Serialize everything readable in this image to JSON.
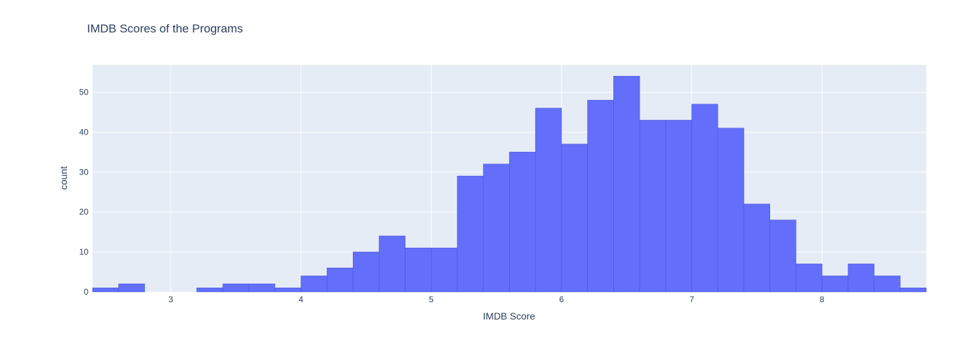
{
  "chart_data": {
    "type": "bar",
    "title": "IMDB Scores of the Programs",
    "xlabel": "IMDB Score",
    "ylabel": "count",
    "bin_width": 0.2,
    "bins": [
      {
        "start": 2.4,
        "count": 1
      },
      {
        "start": 2.6,
        "count": 2
      },
      {
        "start": 2.8,
        "count": 0
      },
      {
        "start": 3.0,
        "count": 0
      },
      {
        "start": 3.2,
        "count": 1
      },
      {
        "start": 3.4,
        "count": 2
      },
      {
        "start": 3.6,
        "count": 2
      },
      {
        "start": 3.8,
        "count": 1
      },
      {
        "start": 4.0,
        "count": 4
      },
      {
        "start": 4.2,
        "count": 6
      },
      {
        "start": 4.4,
        "count": 10
      },
      {
        "start": 4.6,
        "count": 14
      },
      {
        "start": 4.8,
        "count": 11
      },
      {
        "start": 5.0,
        "count": 11
      },
      {
        "start": 5.2,
        "count": 29
      },
      {
        "start": 5.4,
        "count": 32
      },
      {
        "start": 5.6,
        "count": 35
      },
      {
        "start": 5.8,
        "count": 46
      },
      {
        "start": 6.0,
        "count": 37
      },
      {
        "start": 6.2,
        "count": 48
      },
      {
        "start": 6.4,
        "count": 54
      },
      {
        "start": 6.6,
        "count": 43
      },
      {
        "start": 6.8,
        "count": 43
      },
      {
        "start": 7.0,
        "count": 47
      },
      {
        "start": 7.2,
        "count": 41
      },
      {
        "start": 7.4,
        "count": 22
      },
      {
        "start": 7.6,
        "count": 18
      },
      {
        "start": 7.8,
        "count": 7
      },
      {
        "start": 8.0,
        "count": 4
      },
      {
        "start": 8.2,
        "count": 7
      },
      {
        "start": 8.4,
        "count": 4
      },
      {
        "start": 8.6,
        "count": 1
      }
    ],
    "xlim": [
      2.4,
      8.8
    ],
    "ylim": [
      0,
      56.84
    ],
    "x_ticks": [
      3,
      4,
      5,
      6,
      7,
      8
    ],
    "y_ticks": [
      0,
      10,
      20,
      30,
      40,
      50
    ],
    "grid": true,
    "legend": "none",
    "colors": {
      "bar_fill": "#636efa",
      "bar_outline": "#4a55d8",
      "plot_background": "#e5ecf6",
      "grid": "#ffffff",
      "text": "#2a3f5f"
    }
  }
}
